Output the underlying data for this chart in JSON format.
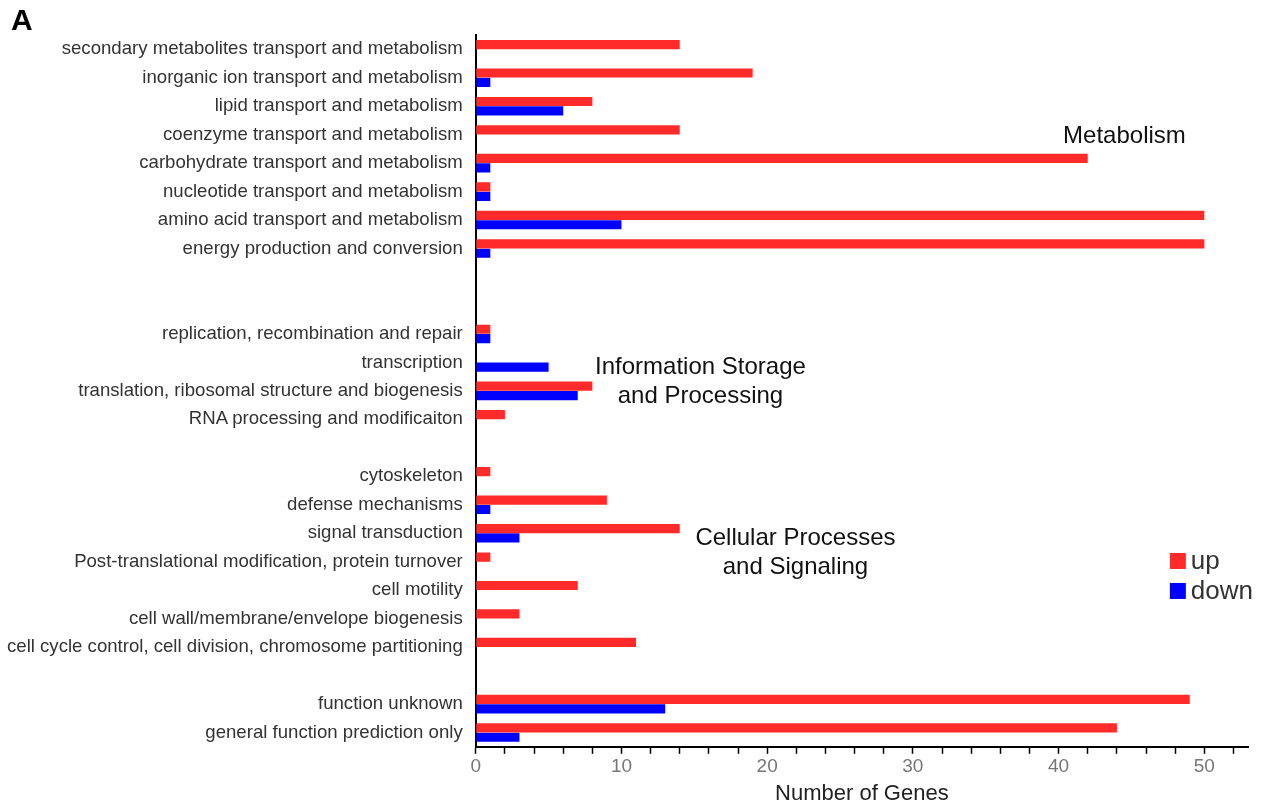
{
  "chart_data": {
    "type": "bar",
    "orientation": "horizontal",
    "title": "A",
    "xlabel": "Number of Genes",
    "categories": [
      "secondary metabolites transport and metabolism",
      "inorganic ion transport and metabolism",
      "lipid transport and metabolism",
      "coenzyme transport and metabolism",
      "carbohydrate transport and metabolism",
      "nucleotide transport and metabolism",
      "amino acid transport and metabolism",
      "energy production and conversion",
      null,
      null,
      "replication, recombination and repair",
      "transcription",
      "translation, ribosomal structure and biogenesis",
      "RNA processing and modificaiton",
      null,
      "cytoskeleton",
      "defense mechanisms",
      "signal transduction",
      "Post-translational modification, protein turnover",
      "cell motility",
      "cell wall/membrane/envelope biogenesis",
      "cell cycle control, cell division, chromosome partitioning",
      null,
      "function unknown",
      "general function prediction only"
    ],
    "series": [
      {
        "name": "up",
        "color": "#ff2a2a",
        "values": [
          14,
          19,
          8,
          14,
          42,
          1,
          50,
          50,
          null,
          null,
          1,
          0,
          8,
          2,
          null,
          1,
          9,
          14,
          1,
          7,
          3,
          11,
          null,
          49,
          44
        ]
      },
      {
        "name": "down",
        "color": "#0000ff",
        "values": [
          0,
          1,
          6,
          0,
          1,
          1,
          10,
          1,
          null,
          null,
          1,
          5,
          7,
          0,
          null,
          0,
          1,
          3,
          0,
          0,
          0,
          0,
          null,
          13,
          3
        ]
      }
    ],
    "xlim": [
      0,
      53
    ],
    "xticks": [
      0,
      {
        "value": 2,
        "label": null
      },
      {
        "value": 4,
        "label": null
      },
      {
        "value": 6,
        "label": null
      },
      {
        "value": 8,
        "label": null
      },
      10,
      {
        "value": 12,
        "label": null
      },
      {
        "value": 14,
        "label": null
      },
      {
        "value": 16,
        "label": null
      },
      {
        "value": 18,
        "label": null
      },
      20,
      {
        "value": 22,
        "label": null
      },
      {
        "value": 24,
        "label": null
      },
      {
        "value": 26,
        "label": null
      },
      {
        "value": 28,
        "label": null
      },
      30,
      {
        "value": 32,
        "label": null
      },
      {
        "value": 34,
        "label": null
      },
      {
        "value": 36,
        "label": null
      },
      {
        "value": 38,
        "label": null
      },
      40,
      {
        "value": 42,
        "label": null
      },
      {
        "value": 44,
        "label": null
      },
      {
        "value": 46,
        "label": null
      },
      {
        "value": 48,
        "label": null
      },
      50,
      {
        "value": 52,
        "label": null
      }
    ],
    "legend": "right",
    "annotations": [
      "Metabolism",
      "Information Storage and Processing",
      "Cellular Processes and Signaling"
    ]
  }
}
